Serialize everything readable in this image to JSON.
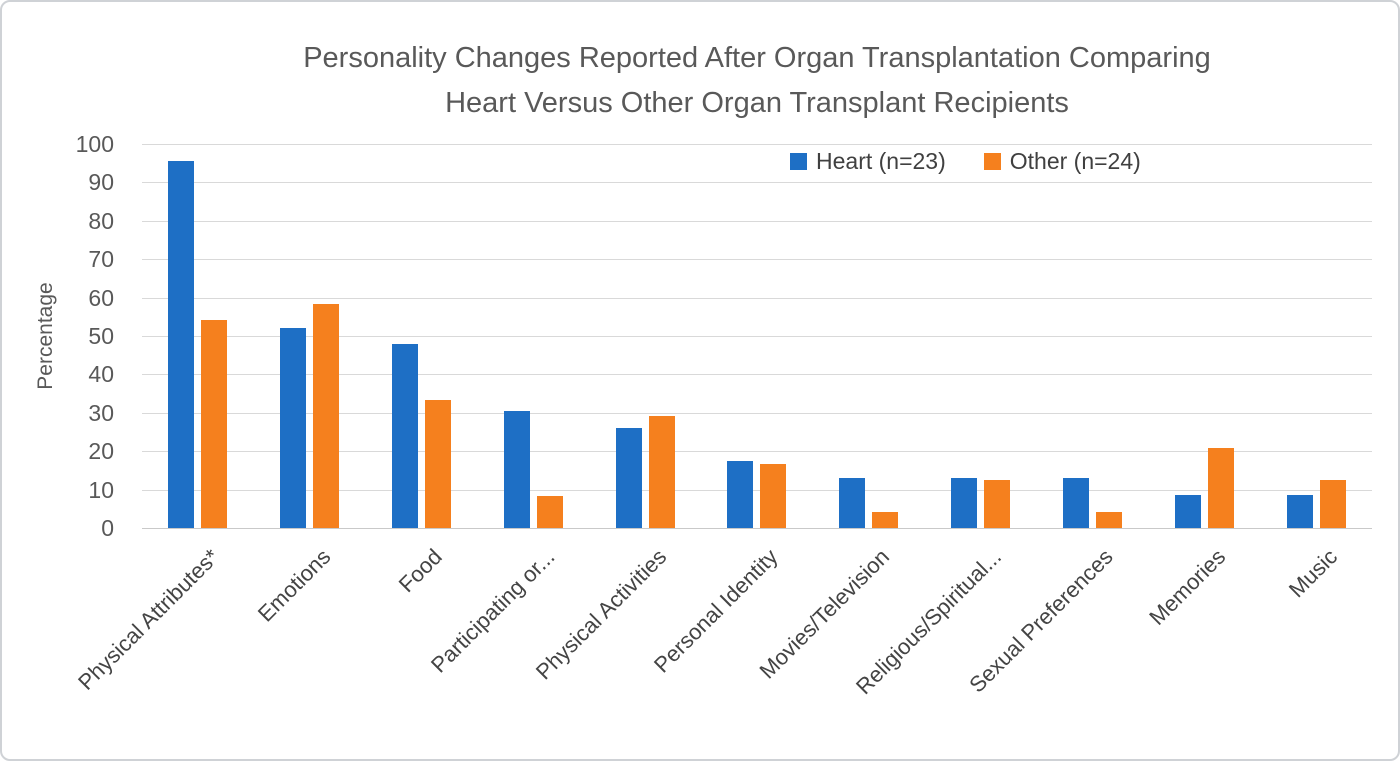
{
  "chart_data": {
    "type": "bar",
    "title": "Personality Changes Reported After Organ Transplantation Comparing Heart Versus Other Organ Transplant Recipients",
    "title_lines": [
      "Personality Changes Reported After Organ Transplantation Comparing",
      "Heart Versus Other Organ Transplant Recipients"
    ],
    "xlabel": "",
    "ylabel": "Percentage",
    "ylim": [
      0,
      100
    ],
    "yticks": [
      0,
      10,
      20,
      30,
      40,
      50,
      60,
      70,
      80,
      90,
      100
    ],
    "grid": "horizontal",
    "legend_position": "top-inside",
    "categories": [
      "Physical Attributes*",
      "Emotions",
      "Food",
      "Participating or...",
      "Physical Activities",
      "Personal Identity",
      "Movies/Television",
      "Religious/Spiritual...",
      "Sexual Preferences",
      "Memories",
      "Music"
    ],
    "series": [
      {
        "name": "Heart (n=23)",
        "color": "#1E6FC5",
        "values": [
          95.7,
          52.2,
          47.8,
          30.4,
          26.1,
          17.4,
          13.0,
          13.0,
          13.0,
          8.7,
          8.7
        ]
      },
      {
        "name": "Other (n=24)",
        "color": "#F5801E",
        "values": [
          54.2,
          58.3,
          33.3,
          8.3,
          29.2,
          16.7,
          4.2,
          12.5,
          4.2,
          20.8,
          12.5
        ]
      }
    ]
  },
  "colors": {
    "title_text": "#595959",
    "axis_text": "#595959",
    "category_text": "#444444",
    "gridline": "#d9d9d9",
    "frame_border": "#cfd2d6",
    "background": "#ffffff"
  }
}
